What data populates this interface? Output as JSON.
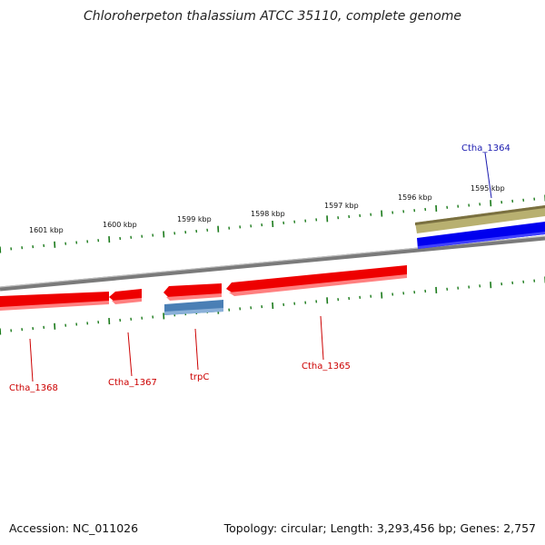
{
  "title": "Chloroherpeton thalassium ATCC 35110, complete genome",
  "footer": {
    "accession": "Accession: NC_011026",
    "summary": "Topology: circular; Length: 3,293,456 bp; Genes: 2,757"
  },
  "colors": {
    "backbone": "#7a7a7a",
    "tick": "#1a7a1a",
    "forward_cds": "#0000ee",
    "reverse_cds": "#ee0000",
    "reverse_rna": "#4a7fb5",
    "misc_feature": "#b8b070",
    "label_forward": "#1c1cb0",
    "label_reverse": "#cc0000"
  },
  "scale": {
    "tick_labels": [
      "1601 kbp",
      "1600 kbp",
      "1599 kbp",
      "1598 kbp",
      "1597 kbp",
      "1596 kbp",
      "1595 kbp"
    ]
  },
  "genes": [
    {
      "label": "Ctha_1364",
      "strand": "forward",
      "type": "CDS"
    },
    {
      "label": "Ctha_1365",
      "strand": "reverse",
      "type": "CDS"
    },
    {
      "label": "trpC",
      "strand": "reverse",
      "type": "CDS"
    },
    {
      "label": "Ctha_1367",
      "strand": "reverse",
      "type": "CDS"
    },
    {
      "label": "Ctha_1368",
      "strand": "reverse",
      "type": "CDS"
    }
  ]
}
